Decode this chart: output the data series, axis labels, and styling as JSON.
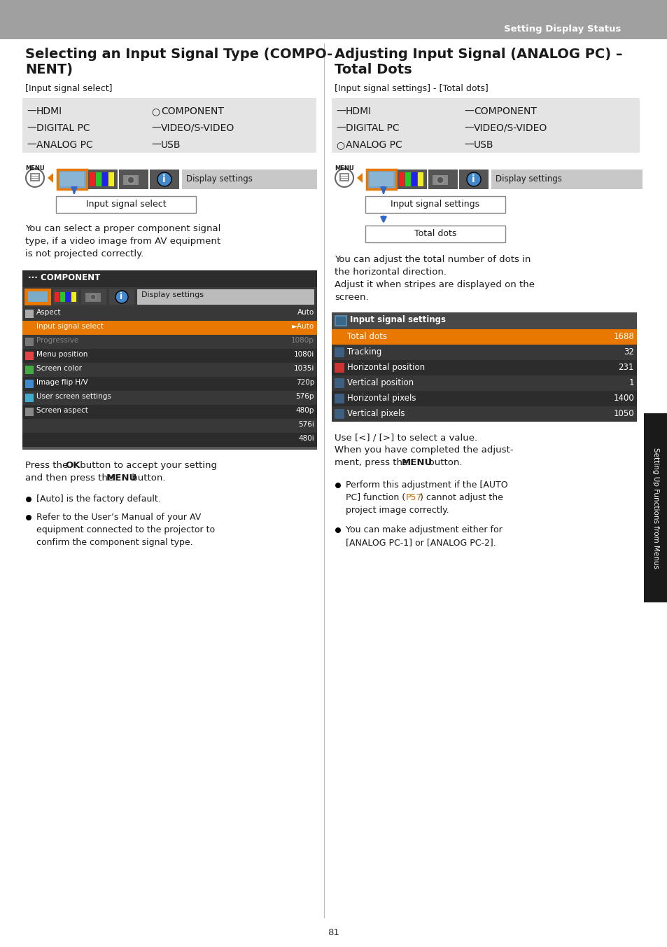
{
  "page_bg": "#ffffff",
  "header_bg": "#a0a0a0",
  "header_text": "Setting Display Status",
  "header_text_color": "#ffffff",
  "page_number": "81",
  "left_title_line1": "Selecting an Input Signal Type (COMPO-",
  "left_title_line2": "NENT)",
  "left_subtitle": "[Input signal select]",
  "left_signal_table": [
    [
      "—",
      "HDMI",
      "○",
      "COMPONENT"
    ],
    [
      "—",
      "DIGITAL PC",
      "—",
      "VIDEO/S-VIDEO"
    ],
    [
      "—",
      "ANALOG PC",
      "—",
      "USB"
    ]
  ],
  "left_menu_label": "Input signal select",
  "left_body_text": "You can select a proper component signal\ntype, if a video image from AV equipment\nis not projected correctly.",
  "left_screen_title": "··· COMPONENT",
  "left_menu_items": [
    [
      "Aspect",
      "Auto",
      false,
      false
    ],
    [
      "Input signal select",
      "►Auto",
      true,
      false
    ],
    [
      "Progressive",
      "1080p",
      false,
      true
    ],
    [
      "Menu position",
      "1080i",
      false,
      false
    ],
    [
      "Screen color",
      "1035i",
      false,
      false
    ],
    [
      "Image flip H/V",
      "720p",
      false,
      false
    ],
    [
      "User screen settings",
      "576p",
      false,
      false
    ],
    [
      "Screen aspect",
      "480p",
      false,
      false
    ],
    [
      "",
      "576i",
      false,
      false
    ],
    [
      "",
      "480i",
      false,
      false
    ]
  ],
  "left_press_ok_1": "Press the ",
  "left_press_ok_2": "OK",
  "left_press_ok_3": " button to accept your setting",
  "left_press_menu_1": "and then press the ",
  "left_press_menu_2": "MENU",
  "left_press_menu_3": " button.",
  "left_bullet1": "[Auto] is the factory default.",
  "left_bullet2_lines": [
    "Refer to the User’s Manual of your AV",
    "equipment connected to the projector to",
    "confirm the component signal type."
  ],
  "right_title_line1": "Adjusting Input Signal (ANALOG PC) –",
  "right_title_line2": "Total Dots",
  "right_subtitle": "[Input signal settings] - [Total dots]",
  "right_signal_table": [
    [
      "—",
      "HDMI",
      "—",
      "COMPONENT"
    ],
    [
      "—",
      "DIGITAL PC",
      "—",
      "VIDEO/S-VIDEO"
    ],
    [
      "○",
      "ANALOG PC",
      "—",
      "USB"
    ]
  ],
  "right_menu_label": "Input signal settings",
  "right_menu_label2": "Total dots",
  "right_body_text_lines": [
    "You can adjust the total number of dots in",
    "the horizontal direction.",
    "Adjust it when stripes are displayed on the",
    "screen."
  ],
  "right_screen_title": "Input signal settings",
  "right_screen_items": [
    [
      "Total dots",
      "1688",
      true,
      "#e87800"
    ],
    [
      "Tracking",
      "32",
      false,
      "#3d6080"
    ],
    [
      "Horizontal position",
      "231",
      false,
      "#cc3333"
    ],
    [
      "Vertical position",
      "1",
      false,
      "#3d6080"
    ],
    [
      "Horizontal pixels",
      "1400",
      false,
      "#3d6080"
    ],
    [
      "Vertical pixels",
      "1050",
      false,
      "#3d6080"
    ]
  ],
  "right_use_text1": "Use [<] / [>] to select a value.",
  "right_use_text2": "When you have completed the adjust-",
  "right_use_text3": "ment, press the ",
  "right_use_menu": "MENU",
  "right_use_text4": " button.",
  "right_bullet1_lines": [
    "Perform this adjustment if the [AUTO",
    "PC] function (",
    "P57",
    ") cannot adjust the",
    "project image correctly."
  ],
  "right_bullet2_lines": [
    "You can make adjustment either for",
    "[ANALOG PC-1] or [ANALOG PC-2]."
  ],
  "sidebar_text": "Setting Up Functions from Menus",
  "sidebar_bg": "#1a1a1a",
  "sidebar_text_color": "#ffffff",
  "orange_color": "#e87800",
  "dark_bg": "#2c2c2c",
  "dark_row_alt": "#383838",
  "light_gray_table": "#e4e4e4",
  "link_color": "#cc6600",
  "tab_selected_border": "#e87800",
  "tab_selected_fill": "#7aa8cc",
  "tab_dark": "#555555",
  "display_settings_bg": "#c8c8c8",
  "menu_box_bg": "#ffffff",
  "menu_box_border": "#000000"
}
